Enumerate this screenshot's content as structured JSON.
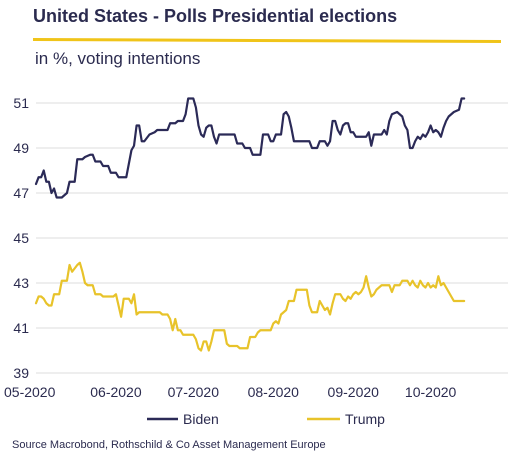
{
  "colors": {
    "biden": "#2b2a57",
    "trump": "#e8c32a",
    "accent_rule": "#f0c419",
    "grid": "#dcdcdc",
    "text": "#2b2b4f"
  },
  "chart_data": {
    "type": "line",
    "title": "United States - Polls Presidential elections",
    "subtitle": "in %, voting intentions",
    "source": "Source Macrobond, Rothschild & Co Asset Management Europe",
    "xlabel": "",
    "ylabel": "",
    "ylim": [
      39,
      52
    ],
    "yticks": [
      39,
      41,
      43,
      45,
      47,
      49,
      51
    ],
    "ytick_labels": [
      "39",
      "41",
      "43",
      "45",
      "47",
      "49",
      "51"
    ],
    "x_unit": "date",
    "xlim": [
      "2020-05-01",
      "2020-10-31"
    ],
    "xticks": [
      "2020-05-01",
      "2020-06-01",
      "2020-07-01",
      "2020-08-01",
      "2020-09-01",
      "2020-10-01"
    ],
    "xtick_labels": [
      "05-2020",
      "06-2020",
      "07-2020",
      "08-2020",
      "09-2020",
      "10-2020"
    ],
    "grid": "horizontal",
    "legend_position": "bottom",
    "series": [
      {
        "name": "Biden",
        "color": "#2b2a57",
        "points": [
          [
            "2020-05-01",
            47.4
          ],
          [
            "2020-05-02",
            47.7
          ],
          [
            "2020-05-03",
            47.7
          ],
          [
            "2020-05-04",
            48.0
          ],
          [
            "2020-05-05",
            47.5
          ],
          [
            "2020-05-06",
            47.5
          ],
          [
            "2020-05-07",
            47.0
          ],
          [
            "2020-05-08",
            47.2
          ],
          [
            "2020-05-09",
            46.8
          ],
          [
            "2020-05-11",
            46.8
          ],
          [
            "2020-05-13",
            47.0
          ],
          [
            "2020-05-14",
            47.5
          ],
          [
            "2020-05-16",
            47.5
          ],
          [
            "2020-05-17",
            48.5
          ],
          [
            "2020-05-19",
            48.5
          ],
          [
            "2020-05-20",
            48.6
          ],
          [
            "2020-05-22",
            48.7
          ],
          [
            "2020-05-23",
            48.7
          ],
          [
            "2020-05-24",
            48.4
          ],
          [
            "2020-05-26",
            48.4
          ],
          [
            "2020-05-27",
            48.2
          ],
          [
            "2020-05-29",
            48.2
          ],
          [
            "2020-05-30",
            47.9
          ],
          [
            "2020-06-01",
            47.9
          ],
          [
            "2020-06-02",
            47.7
          ],
          [
            "2020-06-05",
            47.7
          ],
          [
            "2020-06-06",
            48.3
          ],
          [
            "2020-06-07",
            48.9
          ],
          [
            "2020-06-08",
            49.1
          ],
          [
            "2020-06-09",
            50.0
          ],
          [
            "2020-06-10",
            50.0
          ],
          [
            "2020-06-11",
            49.3
          ],
          [
            "2020-06-12",
            49.3
          ],
          [
            "2020-06-14",
            49.6
          ],
          [
            "2020-06-16",
            49.7
          ],
          [
            "2020-06-17",
            49.8
          ],
          [
            "2020-06-21",
            49.8
          ],
          [
            "2020-06-22",
            50.1
          ],
          [
            "2020-06-24",
            50.1
          ],
          [
            "2020-06-25",
            50.2
          ],
          [
            "2020-06-27",
            50.2
          ],
          [
            "2020-06-28",
            50.5
          ],
          [
            "2020-06-29",
            51.2
          ],
          [
            "2020-07-01",
            51.2
          ],
          [
            "2020-07-02",
            50.8
          ],
          [
            "2020-07-03",
            50.0
          ],
          [
            "2020-07-04",
            49.6
          ],
          [
            "2020-07-05",
            49.5
          ],
          [
            "2020-07-06",
            49.9
          ],
          [
            "2020-07-07",
            50.0
          ],
          [
            "2020-07-08",
            50.0
          ],
          [
            "2020-07-09",
            49.5
          ],
          [
            "2020-07-10",
            49.2
          ],
          [
            "2020-07-11",
            49.6
          ],
          [
            "2020-07-17",
            49.6
          ],
          [
            "2020-07-18",
            49.2
          ],
          [
            "2020-07-20",
            49.2
          ],
          [
            "2020-07-21",
            49.0
          ],
          [
            "2020-07-23",
            49.0
          ],
          [
            "2020-07-24",
            48.7
          ],
          [
            "2020-07-27",
            48.7
          ],
          [
            "2020-07-28",
            49.6
          ],
          [
            "2020-07-30",
            49.6
          ],
          [
            "2020-07-31",
            49.3
          ],
          [
            "2020-08-01",
            49.3
          ],
          [
            "2020-08-02",
            49.6
          ],
          [
            "2020-08-04",
            49.6
          ],
          [
            "2020-08-05",
            50.5
          ],
          [
            "2020-08-06",
            50.6
          ],
          [
            "2020-08-07",
            50.4
          ],
          [
            "2020-08-08",
            49.9
          ],
          [
            "2020-08-09",
            49.3
          ],
          [
            "2020-08-11",
            49.3
          ],
          [
            "2020-08-12",
            49.3
          ],
          [
            "2020-08-15",
            49.3
          ],
          [
            "2020-08-16",
            49.0
          ],
          [
            "2020-08-18",
            49.0
          ],
          [
            "2020-08-19",
            49.3
          ],
          [
            "2020-08-21",
            49.3
          ],
          [
            "2020-08-22",
            49.1
          ],
          [
            "2020-08-23",
            49.3
          ],
          [
            "2020-08-24",
            50.2
          ],
          [
            "2020-08-25",
            50.2
          ],
          [
            "2020-08-26",
            49.8
          ],
          [
            "2020-08-27",
            49.6
          ],
          [
            "2020-08-28",
            50.0
          ],
          [
            "2020-08-29",
            50.1
          ],
          [
            "2020-08-30",
            50.1
          ],
          [
            "2020-08-31",
            49.7
          ],
          [
            "2020-09-01",
            49.7
          ],
          [
            "2020-09-02",
            49.5
          ],
          [
            "2020-09-06",
            49.5
          ],
          [
            "2020-09-07",
            49.7
          ],
          [
            "2020-09-08",
            49.1
          ],
          [
            "2020-09-09",
            49.6
          ],
          [
            "2020-09-12",
            49.6
          ],
          [
            "2020-09-13",
            49.8
          ],
          [
            "2020-09-14",
            49.6
          ],
          [
            "2020-09-15",
            50.2
          ],
          [
            "2020-09-16",
            50.5
          ],
          [
            "2020-09-18",
            50.6
          ],
          [
            "2020-09-20",
            50.4
          ],
          [
            "2020-09-21",
            50.0
          ],
          [
            "2020-09-22",
            49.8
          ],
          [
            "2020-09-23",
            49.0
          ],
          [
            "2020-09-24",
            49.0
          ],
          [
            "2020-09-25",
            49.3
          ],
          [
            "2020-09-26",
            49.5
          ],
          [
            "2020-09-27",
            49.4
          ],
          [
            "2020-09-28",
            49.6
          ],
          [
            "2020-09-29",
            49.5
          ],
          [
            "2020-09-30",
            49.7
          ],
          [
            "2020-10-01",
            50.0
          ],
          [
            "2020-10-02",
            49.7
          ],
          [
            "2020-10-03",
            49.8
          ],
          [
            "2020-10-04",
            49.7
          ],
          [
            "2020-10-05",
            49.5
          ],
          [
            "2020-10-06",
            49.9
          ],
          [
            "2020-10-07",
            50.2
          ],
          [
            "2020-10-08",
            50.4
          ],
          [
            "2020-10-10",
            50.6
          ],
          [
            "2020-10-12",
            50.7
          ],
          [
            "2020-10-13",
            51.2
          ],
          [
            "2020-10-14",
            51.2
          ]
        ]
      },
      {
        "name": "Trump",
        "color": "#e8c32a",
        "points": [
          [
            "2020-05-01",
            42.1
          ],
          [
            "2020-05-02",
            42.4
          ],
          [
            "2020-05-03",
            42.4
          ],
          [
            "2020-05-04",
            42.3
          ],
          [
            "2020-05-05",
            42.1
          ],
          [
            "2020-05-06",
            42.0
          ],
          [
            "2020-05-07",
            42.0
          ],
          [
            "2020-05-08",
            42.5
          ],
          [
            "2020-05-10",
            42.5
          ],
          [
            "2020-05-11",
            43.1
          ],
          [
            "2020-05-13",
            43.1
          ],
          [
            "2020-05-14",
            43.8
          ],
          [
            "2020-05-15",
            43.5
          ],
          [
            "2020-05-17",
            43.8
          ],
          [
            "2020-05-18",
            43.9
          ],
          [
            "2020-05-19",
            43.5
          ],
          [
            "2020-05-20",
            43.0
          ],
          [
            "2020-05-21",
            42.9
          ],
          [
            "2020-05-23",
            42.9
          ],
          [
            "2020-05-24",
            42.5
          ],
          [
            "2020-05-26",
            42.5
          ],
          [
            "2020-05-27",
            42.4
          ],
          [
            "2020-05-31",
            42.4
          ],
          [
            "2020-06-01",
            42.5
          ],
          [
            "2020-06-02",
            42.0
          ],
          [
            "2020-06-03",
            41.5
          ],
          [
            "2020-06-04",
            42.3
          ],
          [
            "2020-06-06",
            42.3
          ],
          [
            "2020-06-07",
            42.1
          ],
          [
            "2020-06-08",
            42.5
          ],
          [
            "2020-06-09",
            41.6
          ],
          [
            "2020-06-10",
            41.7
          ],
          [
            "2020-06-18",
            41.7
          ],
          [
            "2020-06-19",
            41.6
          ],
          [
            "2020-06-21",
            41.6
          ],
          [
            "2020-06-22",
            41.4
          ],
          [
            "2020-06-23",
            40.9
          ],
          [
            "2020-06-24",
            41.4
          ],
          [
            "2020-06-25",
            40.9
          ],
          [
            "2020-06-26",
            40.9
          ],
          [
            "2020-06-27",
            40.7
          ],
          [
            "2020-07-01",
            40.7
          ],
          [
            "2020-07-02",
            40.5
          ],
          [
            "2020-07-03",
            40.1
          ],
          [
            "2020-07-04",
            40.0
          ],
          [
            "2020-07-05",
            40.4
          ],
          [
            "2020-07-06",
            40.4
          ],
          [
            "2020-07-07",
            40.0
          ],
          [
            "2020-07-08",
            40.4
          ],
          [
            "2020-07-09",
            40.9
          ],
          [
            "2020-07-13",
            40.9
          ],
          [
            "2020-07-14",
            40.3
          ],
          [
            "2020-07-15",
            40.2
          ],
          [
            "2020-07-18",
            40.2
          ],
          [
            "2020-07-19",
            40.1
          ],
          [
            "2020-07-22",
            40.1
          ],
          [
            "2020-07-23",
            40.6
          ],
          [
            "2020-07-25",
            40.6
          ],
          [
            "2020-07-26",
            40.8
          ],
          [
            "2020-07-27",
            40.9
          ],
          [
            "2020-07-31",
            40.9
          ],
          [
            "2020-08-01",
            41.2
          ],
          [
            "2020-08-02",
            41.3
          ],
          [
            "2020-08-03",
            41.2
          ],
          [
            "2020-08-04",
            41.6
          ],
          [
            "2020-08-06",
            41.8
          ],
          [
            "2020-08-07",
            42.2
          ],
          [
            "2020-08-09",
            42.2
          ],
          [
            "2020-08-10",
            42.7
          ],
          [
            "2020-08-14",
            42.7
          ],
          [
            "2020-08-15",
            42.0
          ],
          [
            "2020-08-16",
            41.7
          ],
          [
            "2020-08-18",
            41.7
          ],
          [
            "2020-08-19",
            42.2
          ],
          [
            "2020-08-20",
            42.0
          ],
          [
            "2020-08-21",
            41.8
          ],
          [
            "2020-08-22",
            41.9
          ],
          [
            "2020-08-23",
            41.6
          ],
          [
            "2020-08-24",
            42.1
          ],
          [
            "2020-08-25",
            42.5
          ],
          [
            "2020-08-27",
            42.5
          ],
          [
            "2020-08-28",
            42.3
          ],
          [
            "2020-08-29",
            42.2
          ],
          [
            "2020-08-30",
            42.4
          ],
          [
            "2020-08-31",
            42.3
          ],
          [
            "2020-09-01",
            42.5
          ],
          [
            "2020-09-02",
            42.6
          ],
          [
            "2020-09-03",
            42.5
          ],
          [
            "2020-09-04",
            42.6
          ],
          [
            "2020-09-05",
            42.8
          ],
          [
            "2020-09-06",
            43.3
          ],
          [
            "2020-09-07",
            42.8
          ],
          [
            "2020-09-08",
            42.4
          ],
          [
            "2020-09-09",
            42.5
          ],
          [
            "2020-09-10",
            42.7
          ],
          [
            "2020-09-12",
            42.9
          ],
          [
            "2020-09-15",
            42.9
          ],
          [
            "2020-09-16",
            42.6
          ],
          [
            "2020-09-17",
            42.9
          ],
          [
            "2020-09-19",
            42.9
          ],
          [
            "2020-09-20",
            43.1
          ],
          [
            "2020-09-22",
            43.1
          ],
          [
            "2020-09-23",
            42.9
          ],
          [
            "2020-09-24",
            43.1
          ],
          [
            "2020-09-25",
            42.9
          ],
          [
            "2020-09-26",
            42.8
          ],
          [
            "2020-09-27",
            43.1
          ],
          [
            "2020-09-28",
            42.9
          ],
          [
            "2020-09-29",
            42.8
          ],
          [
            "2020-09-30",
            43.0
          ],
          [
            "2020-10-01",
            42.8
          ],
          [
            "2020-10-02",
            42.9
          ],
          [
            "2020-10-03",
            42.8
          ],
          [
            "2020-10-04",
            43.3
          ],
          [
            "2020-10-05",
            42.9
          ],
          [
            "2020-10-06",
            43.0
          ],
          [
            "2020-10-07",
            42.8
          ],
          [
            "2020-10-08",
            42.6
          ],
          [
            "2020-10-09",
            42.4
          ],
          [
            "2020-10-10",
            42.2
          ],
          [
            "2020-10-14",
            42.2
          ]
        ]
      }
    ]
  }
}
